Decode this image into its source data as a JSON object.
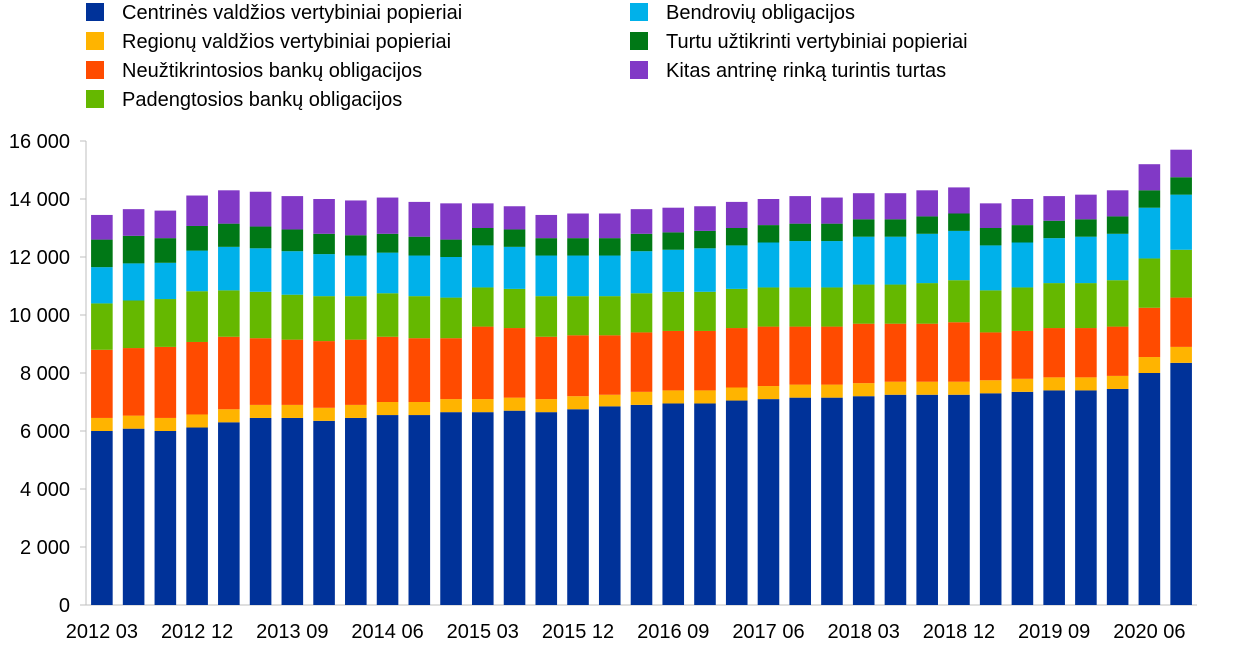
{
  "chart_data": {
    "type": "bar",
    "stacked": true,
    "title": "",
    "xlabel": "",
    "ylabel": "",
    "ylim": [
      0,
      16000
    ],
    "yticks": [
      0,
      2000,
      4000,
      6000,
      8000,
      10000,
      12000,
      14000,
      16000
    ],
    "ytick_labels": [
      "0",
      "2 000",
      "4 000",
      "6 000",
      "8 000",
      "10 000",
      "12 000",
      "14 000",
      "16 000"
    ],
    "grid": false,
    "legend_position": "top",
    "categories": [
      "2012 03",
      "2012 06",
      "2012 09",
      "2012 12",
      "2013 03",
      "2013 06",
      "2013 09",
      "2013 12",
      "2014 03",
      "2014 06",
      "2014 09",
      "2014 12",
      "2015 03",
      "2015 06",
      "2015 09",
      "2015 12",
      "2016 03",
      "2016 06",
      "2016 09",
      "2016 12",
      "2017 03",
      "2017 06",
      "2017 09",
      "2017 12",
      "2018 03",
      "2018 06",
      "2018 09",
      "2018 12",
      "2019 03",
      "2019 06",
      "2019 09",
      "2019 12",
      "2020 03",
      "2020 06",
      "2020 09"
    ],
    "xtick_labels": [
      "2012 03",
      "2012 12",
      "2013 09",
      "2014 06",
      "2015 03",
      "2015 12",
      "2016 09",
      "2017 06",
      "2018 03",
      "2018 12",
      "2019 09",
      "2020 06"
    ],
    "series": [
      {
        "name": "Centrinės valdžios vertybiniai popieriai",
        "color": "#003299",
        "values": [
          6000,
          6080,
          6000,
          6120,
          6300,
          6450,
          6450,
          6350,
          6450,
          6550,
          6550,
          6650,
          6650,
          6700,
          6650,
          6750,
          6850,
          6900,
          6950,
          6950,
          7050,
          7100,
          7150,
          7150,
          7200,
          7250,
          7250,
          7250,
          7300,
          7350,
          7400,
          7400,
          7450,
          8000,
          8350
        ]
      },
      {
        "name": "Regionų valdžios vertybiniai popieriai",
        "color": "#FFB400",
        "values": [
          450,
          450,
          450,
          450,
          450,
          450,
          450,
          450,
          450,
          450,
          450,
          450,
          450,
          450,
          450,
          450,
          400,
          450,
          450,
          450,
          450,
          450,
          450,
          450,
          450,
          450,
          450,
          450,
          450,
          450,
          450,
          450,
          450,
          550,
          550
        ]
      },
      {
        "name": "Neužtikrintosios bankų obligacijos",
        "color": "#FF4B00",
        "values": [
          2350,
          2330,
          2450,
          2500,
          2500,
          2300,
          2250,
          2300,
          2250,
          2250,
          2200,
          2100,
          2500,
          2400,
          2150,
          2100,
          2050,
          2050,
          2050,
          2050,
          2050,
          2050,
          2000,
          2000,
          2050,
          2000,
          2000,
          2050,
          1650,
          1650,
          1700,
          1700,
          1700,
          1700,
          1700
        ]
      },
      {
        "name": "Padengtosios bankų obligacijos",
        "color": "#65B800",
        "values": [
          1600,
          1640,
          1650,
          1750,
          1600,
          1600,
          1550,
          1550,
          1500,
          1500,
          1450,
          1400,
          1350,
          1350,
          1400,
          1350,
          1350,
          1350,
          1350,
          1350,
          1350,
          1350,
          1350,
          1350,
          1350,
          1350,
          1400,
          1450,
          1450,
          1500,
          1550,
          1550,
          1600,
          1700,
          1650
        ]
      },
      {
        "name": "Bendrovių obligacijos",
        "color": "#00B1EA",
        "values": [
          1250,
          1280,
          1250,
          1400,
          1500,
          1500,
          1500,
          1450,
          1400,
          1400,
          1400,
          1400,
          1450,
          1450,
          1400,
          1400,
          1400,
          1450,
          1450,
          1500,
          1500,
          1550,
          1600,
          1600,
          1650,
          1650,
          1700,
          1700,
          1550,
          1550,
          1550,
          1600,
          1600,
          1750,
          1900
        ]
      },
      {
        "name": "Turtu užtikrinti vertybiniai popieriai",
        "color": "#007816",
        "values": [
          950,
          950,
          850,
          850,
          800,
          750,
          750,
          700,
          700,
          650,
          650,
          600,
          600,
          600,
          600,
          600,
          600,
          600,
          600,
          600,
          600,
          600,
          600,
          600,
          600,
          600,
          600,
          600,
          600,
          600,
          600,
          600,
          600,
          600,
          600
        ]
      },
      {
        "name": "Kitas antrinę rinką turintis turtas",
        "color": "#8139C6",
        "values": [
          850,
          920,
          950,
          1050,
          1150,
          1200,
          1150,
          1200,
          1200,
          1250,
          1200,
          1250,
          850,
          800,
          800,
          850,
          850,
          850,
          850,
          850,
          900,
          900,
          950,
          900,
          900,
          900,
          900,
          900,
          850,
          900,
          850,
          850,
          900,
          900,
          950
        ]
      }
    ]
  }
}
